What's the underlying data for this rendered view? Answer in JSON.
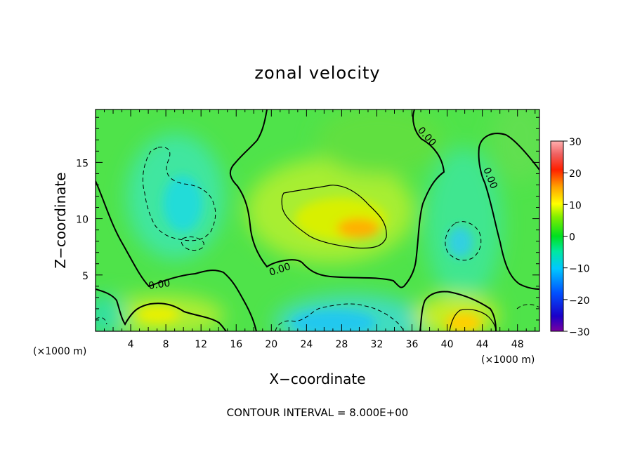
{
  "chart_data": {
    "type": "heatmap",
    "title": "zonal velocity",
    "xlabel": "X−coordinate",
    "ylabel": "Z−coordinate",
    "x_unit": "(×1000 m)",
    "z_unit": "(×1000 m)",
    "xlim": [
      0,
      50.5
    ],
    "ylim": [
      0,
      19.7
    ],
    "x_ticks": [
      4,
      8,
      12,
      16,
      20,
      24,
      28,
      32,
      36,
      40,
      44,
      48
    ],
    "y_ticks": [
      5,
      10,
      15
    ],
    "colorbar": {
      "min": -30,
      "max": 30,
      "ticks": [
        30,
        20,
        10,
        0,
        -10,
        -20,
        -30
      ],
      "tick_labels": [
        "30",
        "20",
        "10",
        "0",
        "−10",
        "−20",
        "−30"
      ]
    },
    "contour_interval_text": "CONTOUR INTERVAL = 8.000E+00",
    "contour_labels": [
      "0.00",
      "0.00",
      "0.00",
      "0.00"
    ],
    "features": [
      {
        "kind": "max",
        "x": 29.5,
        "z": 9.3,
        "value": 13
      },
      {
        "kind": "max",
        "x": 41.5,
        "z": 0.7,
        "value": 12
      },
      {
        "kind": "max",
        "x": 8.5,
        "z": 1.5,
        "value": 9
      },
      {
        "kind": "min",
        "x": 9.5,
        "z": 11.5,
        "value": -8
      },
      {
        "kind": "min",
        "x": 41,
        "z": 8,
        "value": -9
      },
      {
        "kind": "min",
        "x": 28,
        "z": 1,
        "value": -11
      }
    ]
  }
}
